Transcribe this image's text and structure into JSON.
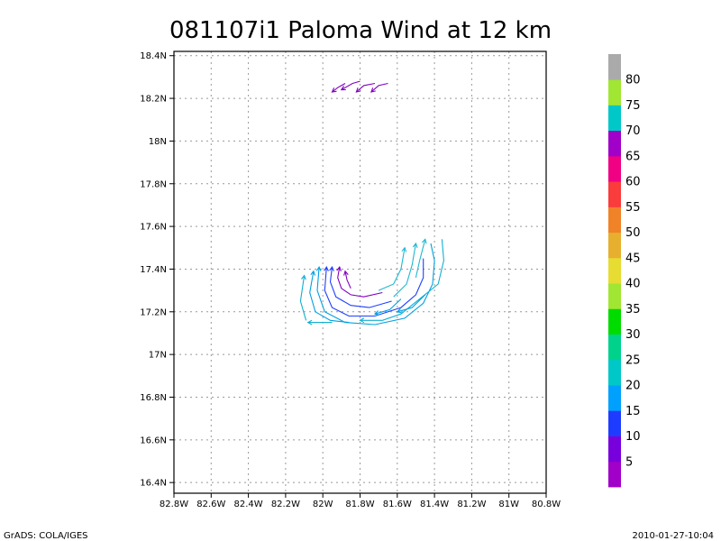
{
  "chart_data": {
    "type": "streamline",
    "title": "081107i1 Paloma Wind at 12 km",
    "xlabel": "",
    "ylabel": "",
    "x_range": [
      -82.8,
      -80.8
    ],
    "y_range": [
      16.35,
      18.42
    ],
    "x_ticks": [
      -82.8,
      -82.6,
      -82.4,
      -82.2,
      -82.0,
      -81.8,
      -81.6,
      -81.4,
      -81.2,
      -81.0,
      -80.8
    ],
    "x_tick_labels": [
      "82.8W",
      "82.6W",
      "82.4W",
      "82.2W",
      "82W",
      "81.8W",
      "81.6W",
      "81.4W",
      "81.2W",
      "81W",
      "80.8W"
    ],
    "y_ticks": [
      16.4,
      16.6,
      16.8,
      17.0,
      17.2,
      17.4,
      17.6,
      17.8,
      18.0,
      18.2,
      18.4
    ],
    "y_tick_labels": [
      "16.4N",
      "16.6N",
      "16.8N",
      "17N",
      "17.2N",
      "17.4N",
      "17.6N",
      "17.8N",
      "18N",
      "18.2N",
      "18.4N"
    ],
    "grid": true,
    "colorbar": {
      "labels": [
        "5",
        "10",
        "15",
        "20",
        "25",
        "30",
        "35",
        "40",
        "45",
        "50",
        "55",
        "60",
        "65",
        "70",
        "75",
        "80"
      ],
      "colors": [
        "#a000c8",
        "#7800dc",
        "#1e3cff",
        "#00a0ff",
        "#00c8c8",
        "#00d28c",
        "#00dc00",
        "#a0e632",
        "#e6dc32",
        "#e6af2d",
        "#f08228",
        "#fa3c3c",
        "#f00082",
        "#a000c8",
        "#00c8c8",
        "#a0e632",
        "#aaaaaa"
      ]
    },
    "streamlines": [
      {
        "color": "#8000c0",
        "points": [
          [
            -81.95,
            18.23
          ],
          [
            -81.92,
            18.25
          ],
          [
            -81.88,
            18.27
          ]
        ]
      },
      {
        "color": "#8000c0",
        "points": [
          [
            -81.9,
            18.24
          ],
          [
            -81.84,
            18.27
          ],
          [
            -81.8,
            18.28
          ]
        ]
      },
      {
        "color": "#8000c0",
        "points": [
          [
            -81.82,
            18.23
          ],
          [
            -81.78,
            18.26
          ],
          [
            -81.72,
            18.27
          ]
        ]
      },
      {
        "color": "#8000c0",
        "points": [
          [
            -81.74,
            18.23
          ],
          [
            -81.7,
            18.26
          ],
          [
            -81.65,
            18.27
          ]
        ]
      },
      {
        "color": "#8000c0",
        "points": [
          [
            -81.88,
            17.39
          ],
          [
            -81.87,
            17.35
          ],
          [
            -81.85,
            17.31
          ]
        ]
      },
      {
        "color": "#8000c0",
        "points": [
          [
            -81.91,
            17.41
          ],
          [
            -81.92,
            17.36
          ],
          [
            -81.9,
            17.31
          ],
          [
            -81.85,
            17.28
          ],
          [
            -81.78,
            17.27
          ],
          [
            -81.68,
            17.29
          ]
        ]
      },
      {
        "color": "#2040ff",
        "points": [
          [
            -81.95,
            17.41
          ],
          [
            -81.96,
            17.34
          ],
          [
            -81.93,
            17.27
          ],
          [
            -81.85,
            17.23
          ],
          [
            -81.75,
            17.22
          ],
          [
            -81.63,
            17.25
          ]
        ]
      },
      {
        "color": "#2040ff",
        "points": [
          [
            -81.98,
            17.41
          ],
          [
            -81.99,
            17.3
          ],
          [
            -81.95,
            17.22
          ],
          [
            -81.86,
            17.18
          ],
          [
            -81.72,
            17.18
          ],
          [
            -81.58,
            17.22
          ],
          [
            -81.5,
            17.28
          ],
          [
            -81.46,
            17.36
          ],
          [
            -81.46,
            17.45
          ]
        ]
      },
      {
        "color": "#00a0e0",
        "points": [
          [
            -82.02,
            17.41
          ],
          [
            -82.03,
            17.3
          ],
          [
            -81.99,
            17.2
          ],
          [
            -81.88,
            17.15
          ],
          [
            -81.72,
            17.14
          ],
          [
            -81.56,
            17.17
          ],
          [
            -81.46,
            17.24
          ],
          [
            -81.41,
            17.33
          ],
          [
            -81.4,
            17.44
          ],
          [
            -81.42,
            17.52
          ]
        ]
      },
      {
        "color": "#00a0e0",
        "points": [
          [
            -82.05,
            17.39
          ],
          [
            -82.07,
            17.29
          ],
          [
            -82.04,
            17.2
          ],
          [
            -81.96,
            17.16
          ],
          [
            -81.86,
            17.15
          ]
        ]
      },
      {
        "color": "#10b0d0",
        "points": [
          [
            -82.1,
            17.37
          ],
          [
            -82.12,
            17.25
          ],
          [
            -82.09,
            17.16
          ]
        ]
      },
      {
        "color": "#10b0d0",
        "points": [
          [
            -82.08,
            17.15
          ],
          [
            -82.02,
            17.15
          ],
          [
            -81.95,
            17.15
          ]
        ]
      },
      {
        "color": "#10b0d0",
        "points": [
          [
            -81.8,
            17.16
          ],
          [
            -81.68,
            17.16
          ],
          [
            -81.58,
            17.19
          ],
          [
            -81.48,
            17.26
          ],
          [
            -81.38,
            17.33
          ],
          [
            -81.35,
            17.44
          ],
          [
            -81.36,
            17.54
          ]
        ]
      },
      {
        "color": "#20b8d0",
        "points": [
          [
            -81.5,
            17.52
          ],
          [
            -81.52,
            17.42
          ],
          [
            -81.55,
            17.33
          ],
          [
            -81.62,
            17.27
          ]
        ]
      },
      {
        "color": "#20b8d0",
        "points": [
          [
            -81.45,
            17.54
          ],
          [
            -81.48,
            17.44
          ],
          [
            -81.5,
            17.36
          ]
        ]
      },
      {
        "color": "#20b8d0",
        "points": [
          [
            -81.56,
            17.5
          ],
          [
            -81.58,
            17.4
          ],
          [
            -81.62,
            17.33
          ],
          [
            -81.7,
            17.3
          ]
        ]
      },
      {
        "color": "#00a0e0",
        "points": [
          [
            -81.6,
            17.2
          ],
          [
            -81.52,
            17.22
          ],
          [
            -81.45,
            17.28
          ]
        ]
      },
      {
        "color": "#00a0e0",
        "points": [
          [
            -81.72,
            17.19
          ],
          [
            -81.64,
            17.21
          ],
          [
            -81.58,
            17.26
          ]
        ]
      }
    ]
  },
  "footer": {
    "left": "GrADS: COLA/IGES",
    "right": "2010-01-27-10:04"
  }
}
